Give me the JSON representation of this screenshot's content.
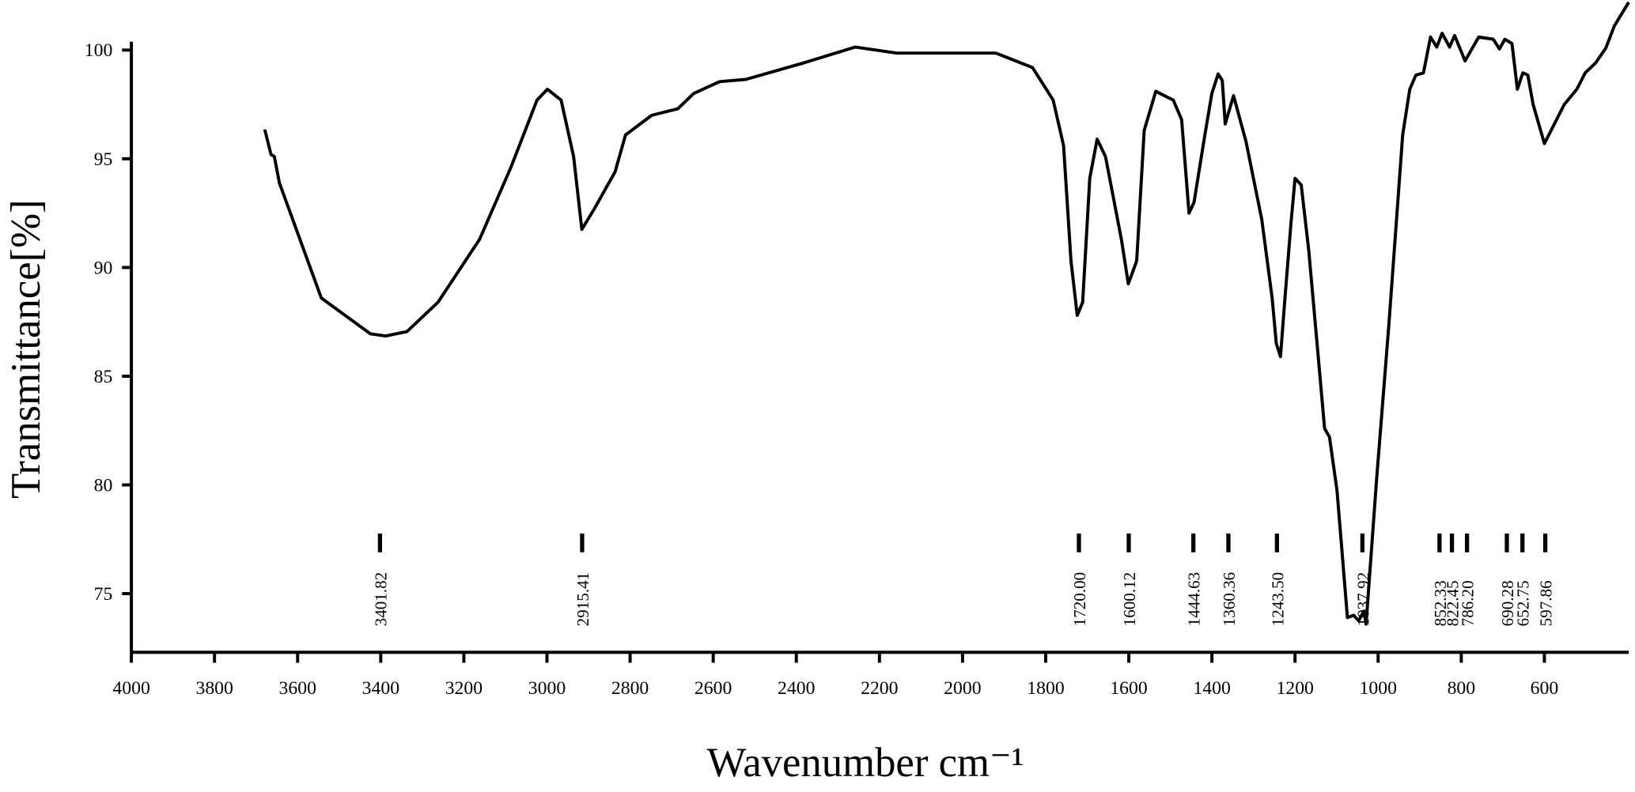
{
  "chart_data": {
    "type": "line",
    "xlabel": "Wavenumber cm⁻¹",
    "ylabel": "Transmittance[%]",
    "color": "#000000",
    "xlim": [
      4000,
      397
    ],
    "ylim": [
      72.3,
      102.3
    ],
    "xticks": [
      4000,
      3800,
      3600,
      3400,
      3200,
      3000,
      2800,
      2600,
      2400,
      2200,
      2000,
      1800,
      1600,
      1400,
      1200,
      1000,
      800,
      600
    ],
    "yticks": [
      75,
      80,
      85,
      90,
      95,
      100
    ],
    "x": [
      3679,
      3664,
      3656,
      3644,
      3543,
      3425,
      3388,
      3337,
      3262,
      3162,
      3087,
      3024,
      2999,
      2966,
      2936,
      2916,
      2886,
      2836,
      2811,
      2748,
      2685,
      2647,
      2585,
      2522,
      2384,
      2258,
      2158,
      1920,
      1832,
      1782,
      1757,
      1739,
      1724,
      1711,
      1694,
      1676,
      1656,
      1618,
      1601,
      1581,
      1563,
      1535,
      1493,
      1473,
      1455,
      1443,
      1417,
      1400,
      1385,
      1375,
      1368,
      1348,
      1318,
      1280,
      1255,
      1245,
      1235,
      1225,
      1210,
      1200,
      1185,
      1167,
      1147,
      1129,
      1117,
      1099,
      1074,
      1059,
      1047,
      1034,
      1029,
      1004,
      974,
      941,
      924,
      909,
      891,
      874,
      859,
      846,
      828,
      816,
      791,
      758,
      723,
      708,
      695,
      678,
      665,
      652,
      640,
      627,
      600,
      552,
      522,
      502,
      477,
      452,
      432,
      397
    ],
    "values": [
      96.35,
      95.2,
      95.1,
      93.9,
      88.6,
      86.95,
      86.85,
      87.05,
      88.4,
      91.3,
      94.6,
      97.7,
      98.2,
      97.7,
      95.1,
      91.75,
      92.7,
      94.4,
      96.1,
      97.0,
      97.3,
      98.0,
      98.55,
      98.65,
      99.4,
      100.14,
      99.86,
      99.86,
      99.2,
      97.7,
      95.6,
      90.3,
      87.8,
      88.4,
      94.1,
      95.9,
      95.1,
      91.3,
      89.25,
      90.3,
      96.3,
      98.1,
      97.7,
      96.8,
      92.5,
      93.0,
      96.1,
      98.0,
      98.9,
      98.6,
      96.6,
      97.9,
      95.8,
      92.2,
      88.6,
      86.5,
      85.9,
      88.4,
      92.0,
      94.1,
      93.8,
      90.8,
      86.5,
      82.6,
      82.2,
      79.75,
      73.9,
      74.0,
      73.75,
      74.2,
      73.6,
      80.2,
      87.4,
      96.1,
      98.2,
      98.85,
      98.95,
      100.6,
      100.14,
      100.77,
      100.14,
      100.67,
      99.5,
      100.6,
      100.5,
      100.05,
      100.5,
      100.3,
      98.2,
      98.95,
      98.85,
      97.5,
      95.7,
      97.5,
      98.2,
      98.95,
      99.4,
      100.1,
      101.1,
      102.2
    ],
    "peaks": [
      {
        "value": 3401.82,
        "label": "3401.82"
      },
      {
        "value": 2915.41,
        "label": "2915.41"
      },
      {
        "value": 1720.0,
        "label": "1720.00"
      },
      {
        "value": 1600.12,
        "label": "1600.12"
      },
      {
        "value": 1444.63,
        "label": "1444.63"
      },
      {
        "value": 1360.36,
        "label": "1360.36"
      },
      {
        "value": 1243.5,
        "label": "1243.50"
      },
      {
        "value": 1037.92,
        "label": "1037.92"
      },
      {
        "value": 852.33,
        "label": "852.33"
      },
      {
        "value": 822.45,
        "label": "822.45"
      },
      {
        "value": 786.2,
        "label": "786.20"
      },
      {
        "value": 690.28,
        "label": "690.28"
      },
      {
        "value": 652.75,
        "label": "652.75"
      },
      {
        "value": 597.86,
        "label": "597.86"
      }
    ]
  }
}
